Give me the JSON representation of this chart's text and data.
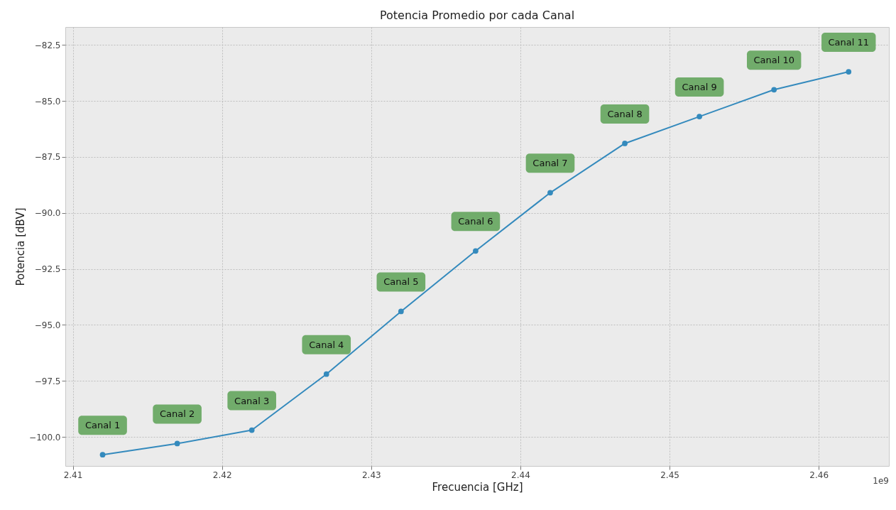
{
  "chart_data": {
    "type": "line",
    "title": "Potencia Promedio por cada Canal",
    "xlabel": "Frecuencia [GHz]",
    "ylabel": "Potencia [dBV]",
    "x": [
      2.412,
      2.417,
      2.422,
      2.427,
      2.432,
      2.437,
      2.442,
      2.447,
      2.452,
      2.457,
      2.462
    ],
    "series": [
      {
        "color": "#348abd",
        "values": [
          -100.8,
          -100.3,
          -99.7,
          -97.2,
          -94.4,
          -91.7,
          -89.1,
          -86.9,
          -85.7,
          -84.5,
          -83.7
        ]
      }
    ],
    "xlim": [
      2.4095,
      2.4647
    ],
    "ylim": [
      -101.3,
      -81.7
    ],
    "xticks": [
      2.41,
      2.42,
      2.43,
      2.44,
      2.45,
      2.46
    ],
    "yticks": [
      {
        "value": -100,
        "label": "−100.0"
      },
      {
        "value": -97.5,
        "label": "−97.5"
      },
      {
        "value": -95,
        "label": "−95.0"
      },
      {
        "value": -92.5,
        "label": "−92.5"
      },
      {
        "value": -90,
        "label": "−90.0"
      },
      {
        "value": -87.5,
        "label": "−87.5"
      },
      {
        "value": -85,
        "label": "−85.0"
      },
      {
        "value": -82.5,
        "label": "−82.5"
      }
    ],
    "grid": true,
    "marker": "circle",
    "line_style": "solid",
    "annotations": [
      {
        "text": "Canal 1",
        "x": 2.412,
        "y": -100.8
      },
      {
        "text": "Canal 2",
        "x": 2.417,
        "y": -100.3
      },
      {
        "text": "Canal 3",
        "x": 2.422,
        "y": -99.7
      },
      {
        "text": "Canal 4",
        "x": 2.427,
        "y": -97.2
      },
      {
        "text": "Canal 5",
        "x": 2.432,
        "y": -94.4
      },
      {
        "text": "Canal 6",
        "x": 2.437,
        "y": -91.7
      },
      {
        "text": "Canal 7",
        "x": 2.442,
        "y": -89.1
      },
      {
        "text": "Canal 8",
        "x": 2.447,
        "y": -86.9
      },
      {
        "text": "Canal 9",
        "x": 2.452,
        "y": -85.7
      },
      {
        "text": "Canal 10",
        "x": 2.457,
        "y": -84.5
      },
      {
        "text": "Canal 11",
        "x": 2.462,
        "y": -83.7
      },
      "1e9"
    ]
  }
}
